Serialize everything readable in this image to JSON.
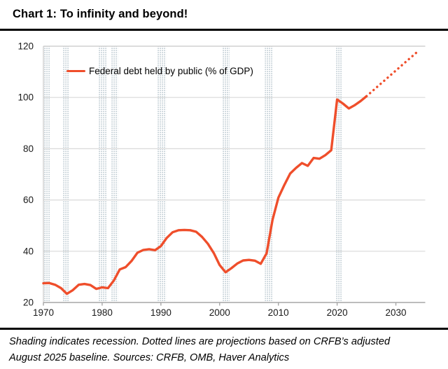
{
  "title": "Chart 1: To infinity and beyond!",
  "footnote": "Shading indicates recession. Dotted lines are projections based on CRFB’s adjusted August 2025 baseline. Sources: CRFB, OMB, Haver Analytics",
  "chart_data": {
    "type": "line",
    "title": "Chart 1: To infinity and beyond!",
    "legend": "Federal debt held by public (% of GDP)",
    "xlabel": "",
    "ylabel": "",
    "xlim": [
      1970,
      2035
    ],
    "ylim": [
      20,
      120
    ],
    "x_ticks": [
      1970,
      1980,
      1990,
      2000,
      2010,
      2020,
      2030
    ],
    "y_ticks": [
      20,
      40,
      60,
      80,
      100,
      120
    ],
    "grid": "horizontal",
    "legend_position": "top-left-inside",
    "line_color": "#EF4E2B",
    "gridline_color": "#d9d9d9",
    "frame_color": "#c8c8c8",
    "axis_color": "#a6a6a6",
    "recession_dot_color": "#b3c2ca",
    "recessions": [
      [
        1970.0,
        1971.1
      ],
      [
        1973.3,
        1974.4
      ],
      [
        1979.4,
        1980.8
      ],
      [
        1981.5,
        1982.7
      ],
      [
        1989.3,
        1990.9
      ],
      [
        2000.5,
        2001.7
      ],
      [
        2007.7,
        2009.0
      ],
      [
        2019.7,
        2020.9
      ]
    ],
    "series": [
      {
        "name": "Federal debt held by public (% of GDP), actual",
        "style": "solid",
        "x": [
          1970,
          1971,
          1972,
          1973,
          1974,
          1975,
          1976,
          1977,
          1978,
          1979,
          1980,
          1981,
          1982,
          1983,
          1984,
          1985,
          1986,
          1987,
          1988,
          1989,
          1990,
          1991,
          1992,
          1993,
          1994,
          1995,
          1996,
          1997,
          1998,
          1999,
          2000,
          2001,
          2002,
          2003,
          2004,
          2005,
          2006,
          2007,
          2008,
          2009,
          2010,
          2011,
          2012,
          2013,
          2014,
          2015,
          2016,
          2017,
          2018,
          2019,
          2020,
          2021,
          2022,
          2023,
          2024,
          2025
        ],
        "values": [
          27.5,
          27.6,
          26.9,
          25.6,
          23.4,
          24.8,
          26.9,
          27.2,
          26.8,
          25.3,
          25.9,
          25.6,
          28.6,
          32.9,
          33.8,
          36.2,
          39.4,
          40.5,
          40.8,
          40.4,
          42.0,
          45.2,
          47.4,
          48.2,
          48.3,
          48.2,
          47.6,
          45.6,
          42.9,
          39.3,
          34.6,
          31.8,
          33.4,
          35.2,
          36.4,
          36.6,
          36.3,
          35.1,
          39.2,
          52.2,
          60.9,
          65.8,
          70.3,
          72.5,
          74.4,
          73.3,
          76.4,
          76.1,
          77.5,
          79.4,
          99.2,
          97.6,
          95.7,
          97.0,
          98.6,
          100.5
        ]
      },
      {
        "name": "Federal debt held by public (% of GDP), projection",
        "style": "dotted",
        "x": [
          2025,
          2026,
          2027,
          2028,
          2029,
          2030,
          2031,
          2032,
          2033,
          2034
        ],
        "values": [
          100.5,
          102.5,
          104.5,
          106.5,
          108.5,
          110.5,
          112.5,
          114.5,
          116.5,
          118.5
        ]
      }
    ]
  }
}
